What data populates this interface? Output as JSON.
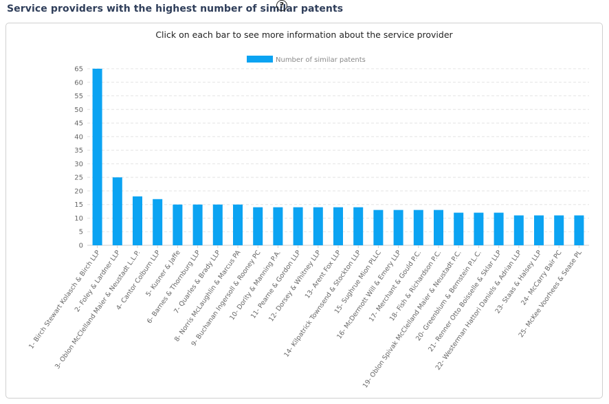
{
  "header": {
    "title": "Service providers with the highest number of similar patents",
    "help_icon": "question-circle-icon"
  },
  "panel": {
    "instruction": "Click on each bar to see more information about the service provider"
  },
  "colors": {
    "bar": "#0ba3f2",
    "grid": "#e4e4e4",
    "axis": "#cccccc",
    "title": "#2f3e5a"
  },
  "chart_data": {
    "type": "bar",
    "title": "",
    "xlabel": "",
    "ylabel": "",
    "ylim": [
      0,
      65
    ],
    "yticks": [
      0,
      5,
      10,
      15,
      20,
      25,
      30,
      35,
      40,
      45,
      50,
      55,
      60,
      65
    ],
    "legend": "top-center",
    "grid": true,
    "categories": [
      "1- Birch Stewart Kolasch & Birch LLP",
      "2- Foley & Lardner LLP",
      "3- Oblon McClelland Maier & Neustadt L.L.P.",
      "4- Cantor Colburn LLP",
      "5- Kusner & Jaffe",
      "6- Barnes & Thornburg LLP",
      "7- Quarles & Brady LLP",
      "8- Norris McLaughlin & Marcus PA",
      "9- Buchanan Ingersoll & Rooney PC",
      "10- Dority & Manning P.A.",
      "11- Pearne & Gordon LLP",
      "12- Dorsey & Whitney LLP",
      "13- Arent Fox LLP",
      "14- Kilpatrick Townsend & Stockton LLP",
      "15- Sughrue Mion PLLC",
      "16- McDermott Will & Emery LLP",
      "17- Merchant & Gould P.C.",
      "18- Fish & Richardson P.C.",
      "19- Oblon Spivak McClelland Maier & Neustadt P.C.",
      "20- Greenblum & Bernstein P.L.C.",
      "21- Renner Otto Boisselle & Sklar LLP",
      "22- Westerman Hattori Daniels & Adrian LLP",
      "23- Staas & Halsey LLP",
      "24- McCarry Bair PC",
      "25- McKee Voorhees & Sease PL"
    ],
    "series": [
      {
        "name": "Number of similar patents",
        "values": [
          65,
          25,
          18,
          17,
          15,
          15,
          15,
          15,
          14,
          14,
          14,
          14,
          14,
          14,
          13,
          13,
          13,
          13,
          12,
          12,
          12,
          11,
          11,
          11,
          11
        ]
      }
    ]
  }
}
